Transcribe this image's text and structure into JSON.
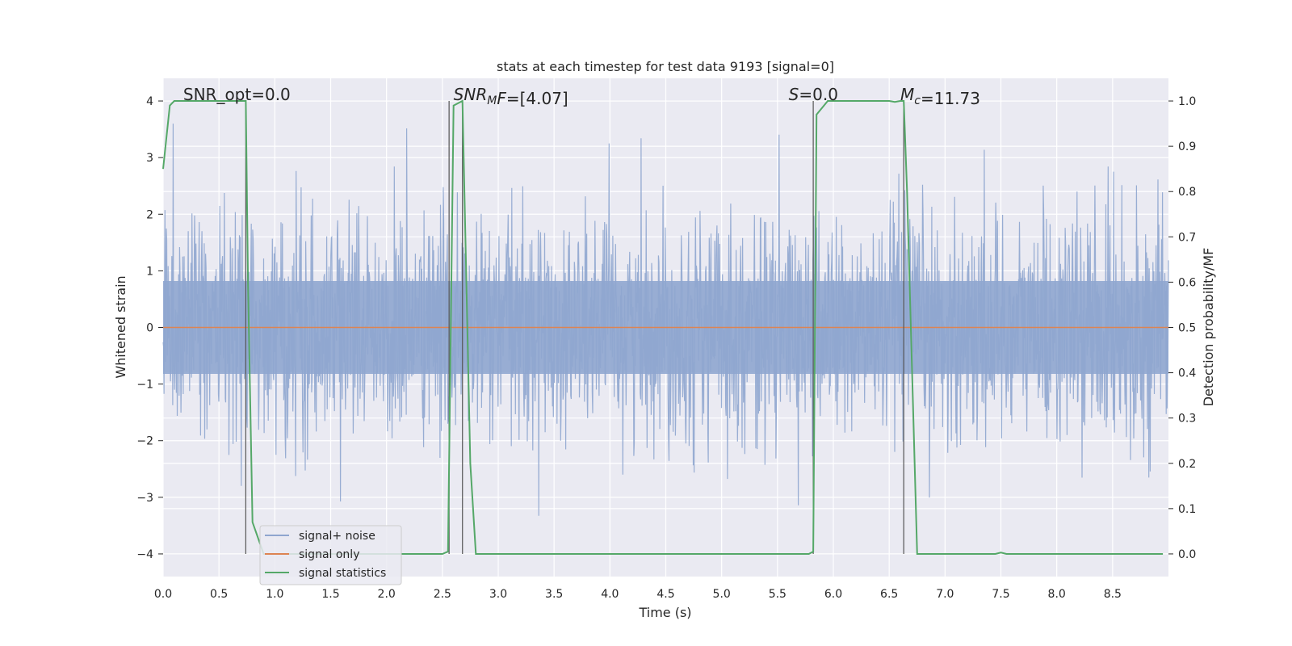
{
  "chart_data": {
    "type": "line",
    "title": "stats at each timestep for test data 9193 [signal=0]",
    "xlabel": "Time (s)",
    "ylabel": "Whitened strain",
    "ylabel_right": "Detection probability/MF",
    "xlim": [
      0.0,
      9.0
    ],
    "ylim": [
      -4.4,
      4.4
    ],
    "ylim_right": [
      -0.05,
      1.05
    ],
    "x_ticks": [
      0.0,
      0.5,
      1.0,
      1.5,
      2.0,
      2.5,
      3.0,
      3.5,
      4.0,
      4.5,
      5.0,
      5.5,
      6.0,
      6.5,
      7.0,
      7.5,
      8.0,
      8.5
    ],
    "x_tick_labels": [
      "0.0",
      "0.5",
      "1.0",
      "1.5",
      "2.0",
      "2.5",
      "3.0",
      "3.5",
      "4.0",
      "4.5",
      "5.0",
      "5.5",
      "6.0",
      "6.5",
      "7.0",
      "7.5",
      "8.0",
      "8.5"
    ],
    "y_ticks": [
      -4,
      -3,
      -2,
      -1,
      0,
      1,
      2,
      3,
      4
    ],
    "y_tick_labels": [
      "−4",
      "−3",
      "−2",
      "−1",
      "0",
      "1",
      "2",
      "3",
      "4"
    ],
    "y_ticks_right": [
      0.0,
      0.1,
      0.2,
      0.3,
      0.4,
      0.5,
      0.6,
      0.7,
      0.8,
      0.9,
      1.0
    ],
    "y_tick_labels_right": [
      "0.0",
      "0.1",
      "0.2",
      "0.3",
      "0.4",
      "0.5",
      "0.6",
      "0.7",
      "0.8",
      "0.9",
      "1.0"
    ],
    "grid": true,
    "legend_position": "lower-left",
    "annotations": [
      {
        "id": "snr-opt",
        "x": 0.18,
        "parts": [
          {
            "text": "SNR_opt=0.0",
            "italic": false
          }
        ]
      },
      {
        "id": "snr-mf",
        "x": 2.6,
        "parts": [
          {
            "text": "SNR",
            "italic": true
          },
          {
            "text": "M",
            "italic": true,
            "sub": true
          },
          {
            "text": "F",
            "italic": true
          },
          {
            "text": "=[4.07]",
            "italic": false
          }
        ]
      },
      {
        "id": "s",
        "x": 5.6,
        "parts": [
          {
            "text": "S",
            "italic": true
          },
          {
            "text": "=0.0",
            "italic": false
          }
        ]
      },
      {
        "id": "mc",
        "x": 6.6,
        "parts": [
          {
            "text": "M",
            "italic": true
          },
          {
            "text": "c",
            "italic": true,
            "sub": true
          },
          {
            "text": "=11.73",
            "italic": false
          }
        ]
      }
    ],
    "vertical_markers": [
      0.74,
      2.56,
      2.68,
      5.82,
      6.63
    ],
    "series": [
      {
        "name": "signal+ noise",
        "color": "#8fa6cf",
        "description": "whitened strain, noise only",
        "noise_sigma": 1.0,
        "x_range": [
          0.0,
          9.0
        ]
      },
      {
        "name": "signal only",
        "color": "#dd8452",
        "x": [
          0.0,
          9.0
        ],
        "y": [
          0.0,
          0.0
        ]
      },
      {
        "name": "signal statistics",
        "color": "#55a868",
        "axis": "right",
        "x": [
          0.0,
          0.06,
          0.1,
          0.2,
          0.7,
          0.74,
          0.76,
          0.8,
          0.9,
          1.0,
          2.5,
          2.55,
          2.6,
          2.68,
          2.75,
          2.8,
          5.78,
          5.82,
          5.85,
          5.95,
          6.5,
          6.55,
          6.6,
          6.63,
          6.66,
          6.75,
          7.45,
          7.5,
          7.55,
          8.95
        ],
        "y": [
          0.85,
          0.99,
          1.0,
          1.0,
          1.0,
          1.0,
          0.6,
          0.07,
          0.0,
          0.0,
          0.0,
          0.005,
          0.99,
          1.0,
          0.2,
          0.0,
          0.0,
          0.005,
          0.97,
          1.0,
          1.0,
          0.998,
          1.0,
          1.0,
          0.8,
          0.0,
          0.0,
          0.003,
          0.0,
          0.0
        ]
      }
    ]
  }
}
